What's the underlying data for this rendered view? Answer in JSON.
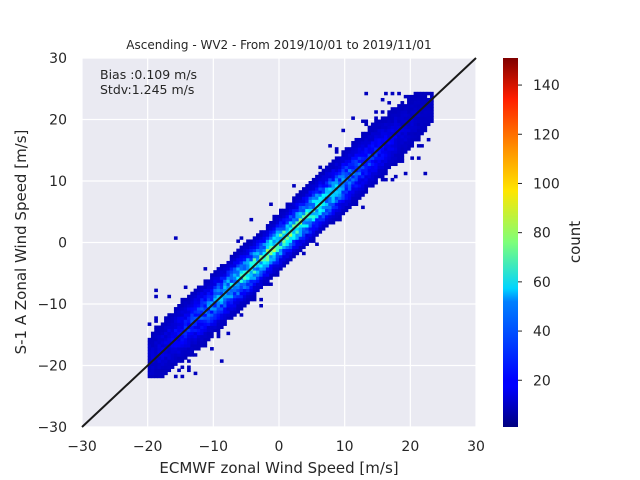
{
  "chart_data": {
    "type": "heatmap",
    "title": "Ascending - WV2 - From 2019/10/01 to 2019/11/01",
    "xlabel": "ECMWF zonal Wind Speed [m/s]",
    "ylabel": "S-1 A Zonal Wind Speed [m/s]",
    "xlim": [
      -30,
      30
    ],
    "ylim": [
      -30,
      30
    ],
    "xticks": [
      "−30",
      "−20",
      "−10",
      "0",
      "10",
      "20",
      "30"
    ],
    "yticks": [
      "−30",
      "−20",
      "−10",
      "0",
      "10",
      "20",
      "30"
    ],
    "grid": true,
    "background_color": "#eaeaf2",
    "annotations": {
      "bias": "Bias :0.109 m/s",
      "stdv": "Stdv:1.245 m/s"
    },
    "reference_line": {
      "from": [
        -30,
        -30
      ],
      "to": [
        30,
        30
      ],
      "color": "#1a1a1a"
    },
    "colorbar": {
      "label": "count",
      "min": 1,
      "max": 151,
      "ticks": [
        "20",
        "40",
        "60",
        "80",
        "100",
        "120",
        "140"
      ],
      "colormap": "jet"
    },
    "density_model": {
      "bin_size": 0.5,
      "peak_count": 60,
      "spread_along": 8.5,
      "spread_across": 1.6,
      "x_extent": [
        -20,
        23
      ]
    }
  }
}
